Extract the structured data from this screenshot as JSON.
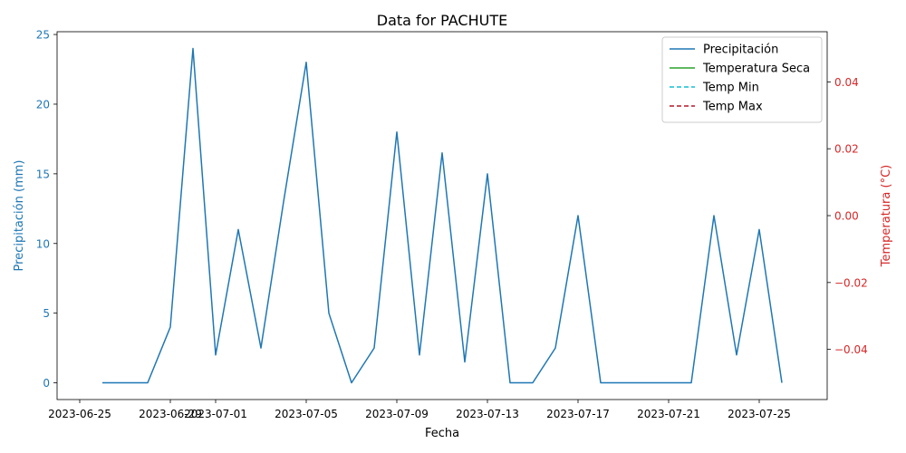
{
  "chart_data": {
    "type": "line",
    "title": "Data for PACHUTE",
    "xlabel": "Fecha",
    "ylabel_left": "Precipitación (mm)",
    "ylabel_right": "Temperatura (°C)",
    "xlim": [
      "2023-06-24",
      "2023-07-28"
    ],
    "ylim_left": [
      -1.2,
      25.2
    ],
    "ylim_right": [
      -0.055,
      0.055
    ],
    "x_ticks": [
      "2023-06-25",
      "2023-06-29",
      "2023-07-01",
      "2023-07-05",
      "2023-07-09",
      "2023-07-13",
      "2023-07-17",
      "2023-07-21",
      "2023-07-25"
    ],
    "y_ticks_left": [
      "0",
      "5",
      "10",
      "15",
      "20",
      "25"
    ],
    "y_ticks_right": [
      "−0.04",
      "−0.02",
      "0.00",
      "0.02",
      "0.04"
    ],
    "grid": false,
    "legend_position": "top-right",
    "colors": {
      "left_axis": "#1f77b4",
      "right_axis": "#d62728"
    },
    "series": [
      {
        "name": "Precipitación",
        "axis": "left",
        "color": "#1f77b4",
        "style": "solid",
        "x": [
          "2023-06-26",
          "2023-06-27",
          "2023-06-28",
          "2023-06-29",
          "2023-06-30",
          "2023-07-01",
          "2023-07-02",
          "2023-07-03",
          "2023-07-04",
          "2023-07-05",
          "2023-07-06",
          "2023-07-07",
          "2023-07-08",
          "2023-07-09",
          "2023-07-10",
          "2023-07-11",
          "2023-07-12",
          "2023-07-13",
          "2023-07-14",
          "2023-07-15",
          "2023-07-16",
          "2023-07-17",
          "2023-07-18",
          "2023-07-19",
          "2023-07-20",
          "2023-07-21",
          "2023-07-22",
          "2023-07-23",
          "2023-07-24",
          "2023-07-25",
          "2023-07-26"
        ],
        "values": [
          0,
          0,
          0,
          4,
          24,
          2,
          11,
          2.5,
          13,
          23,
          5,
          0,
          2.5,
          18,
          2,
          16.5,
          1.5,
          15,
          0,
          0,
          2.5,
          12,
          0,
          0,
          0,
          0,
          0,
          12,
          2,
          11,
          0
        ]
      },
      {
        "name": "Temperatura Seca",
        "axis": "right",
        "color": "#2ca02c",
        "style": "solid",
        "x": [],
        "values": []
      },
      {
        "name": "Temp Min",
        "axis": "right",
        "color": "#17becf",
        "style": "dashed",
        "x": [],
        "values": []
      },
      {
        "name": "Temp Max",
        "axis": "right",
        "color": "#b2182b",
        "style": "dashed",
        "x": [],
        "values": []
      }
    ]
  }
}
